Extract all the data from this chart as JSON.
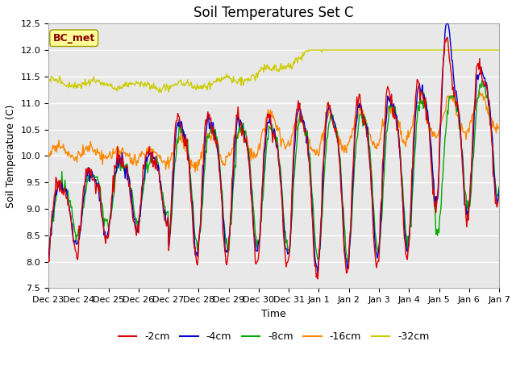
{
  "title": "Soil Temperatures Set C",
  "xlabel": "Time",
  "ylabel": "Soil Temperature (C)",
  "ylim": [
    7.5,
    12.5
  ],
  "tick_labels": [
    "Dec 23",
    "Dec 24",
    "Dec 25",
    "Dec 26",
    "Dec 27",
    "Dec 28",
    "Dec 29",
    "Dec 30",
    "Dec 31",
    "Jan 1",
    "Jan 2",
    "Jan 3",
    "Jan 4",
    "Jan 5",
    "Jan 6",
    "Jan 7"
  ],
  "colors": {
    "-2cm": "#dd0000",
    "-4cm": "#0000cc",
    "-8cm": "#00aa00",
    "-16cm": "#ff8800",
    "-32cm": "#cccc00"
  },
  "annotation_text": "BC_met",
  "annotation_bg": "#ffff99",
  "annotation_border": "#999900",
  "plot_bg": "#e8e8e8",
  "fig_bg": "#ffffff",
  "grid_color": "#ffffff",
  "title_fontsize": 12,
  "axis_fontsize": 9,
  "tick_fontsize": 8,
  "legend_fontsize": 9
}
